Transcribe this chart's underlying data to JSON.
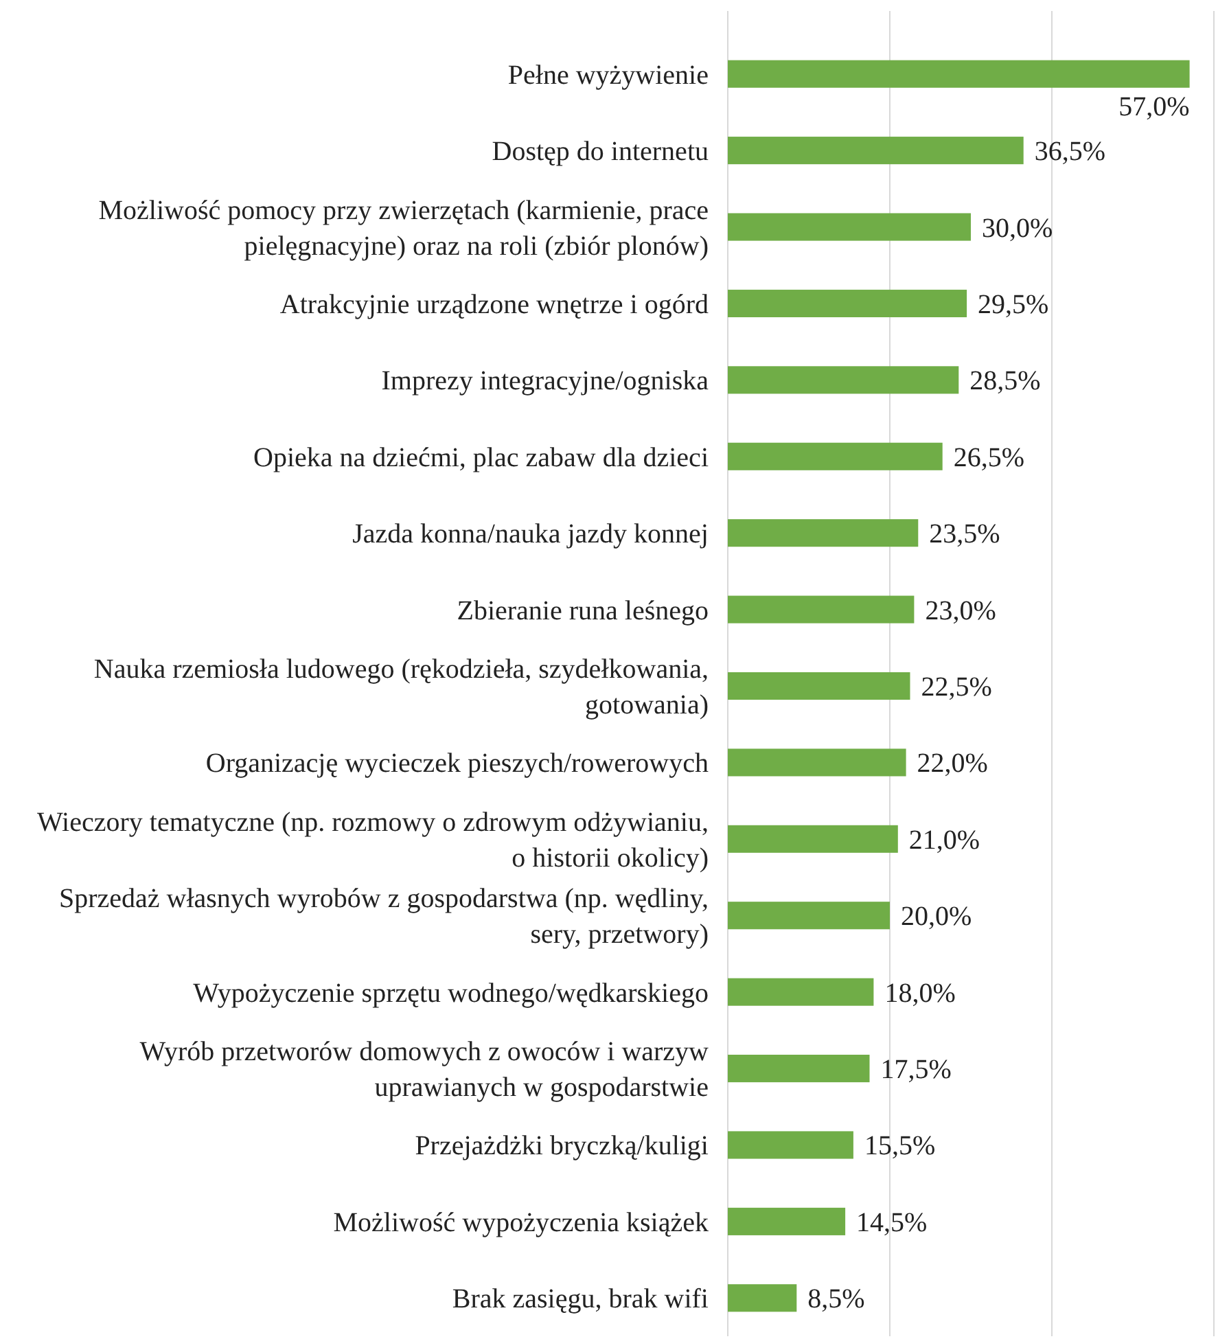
{
  "chart_data": {
    "type": "bar",
    "orientation": "horizontal",
    "categories": [
      "Pełne wyżywienie",
      "Dostęp do internetu",
      "Możliwość pomocy przy zwierzętach (karmienie, prace pielęgnacyjne) oraz na roli (zbiór plonów)",
      "Atrakcyjnie urządzone wnętrze i ogórd",
      "Imprezy integracyjne/ogniska",
      "Opieka na dziećmi, plac zabaw dla dzieci",
      "Jazda konna/nauka jazdy konnej",
      "Zbieranie runa leśnego",
      "Nauka rzemiosła ludowego (rękodzieła, szydełkowania, gotowania)",
      "Organizację wycieczek pieszych/rowerowych",
      "Wieczory tematyczne (np. rozmowy o zdrowym odżywianiu, o historii okolicy)",
      "Sprzedaż własnych wyrobów z gospodarstwa (np. wędliny, sery, przetwory)",
      "Wypożyczenie sprzętu wodnego/wędkarskiego",
      "Wyrób przetworów domowych z owoców i warzyw uprawianych w gospodarstwie",
      "Przejażdżki bryczką/kuligi",
      "Możliwość wypożyczenia książek",
      "Brak zasięgu, brak wifi"
    ],
    "values": [
      57.0,
      36.5,
      30.0,
      29.5,
      28.5,
      26.5,
      23.5,
      23.0,
      22.5,
      22.0,
      21.0,
      20.0,
      18.0,
      17.5,
      15.5,
      14.5,
      8.5
    ],
    "value_labels": [
      "57,0%",
      "36,5%",
      "30,0%",
      "29,5%",
      "28,5%",
      "26,5%",
      "23,5%",
      "23,0%",
      "22,5%",
      "22,0%",
      "21,0%",
      "20,0%",
      "18,0%",
      "17,5%",
      "15,5%",
      "14,5%",
      "8,5%"
    ],
    "color": "#70ad47",
    "xlim": [
      0,
      60
    ],
    "xticks": [
      {
        "value": 0,
        "label": null
      },
      {
        "value": 20,
        "label": null
      },
      {
        "value": 40,
        "label": null
      },
      {
        "value": 60,
        "label": null
      }
    ],
    "tick_labels": "y",
    "grid": "x"
  }
}
